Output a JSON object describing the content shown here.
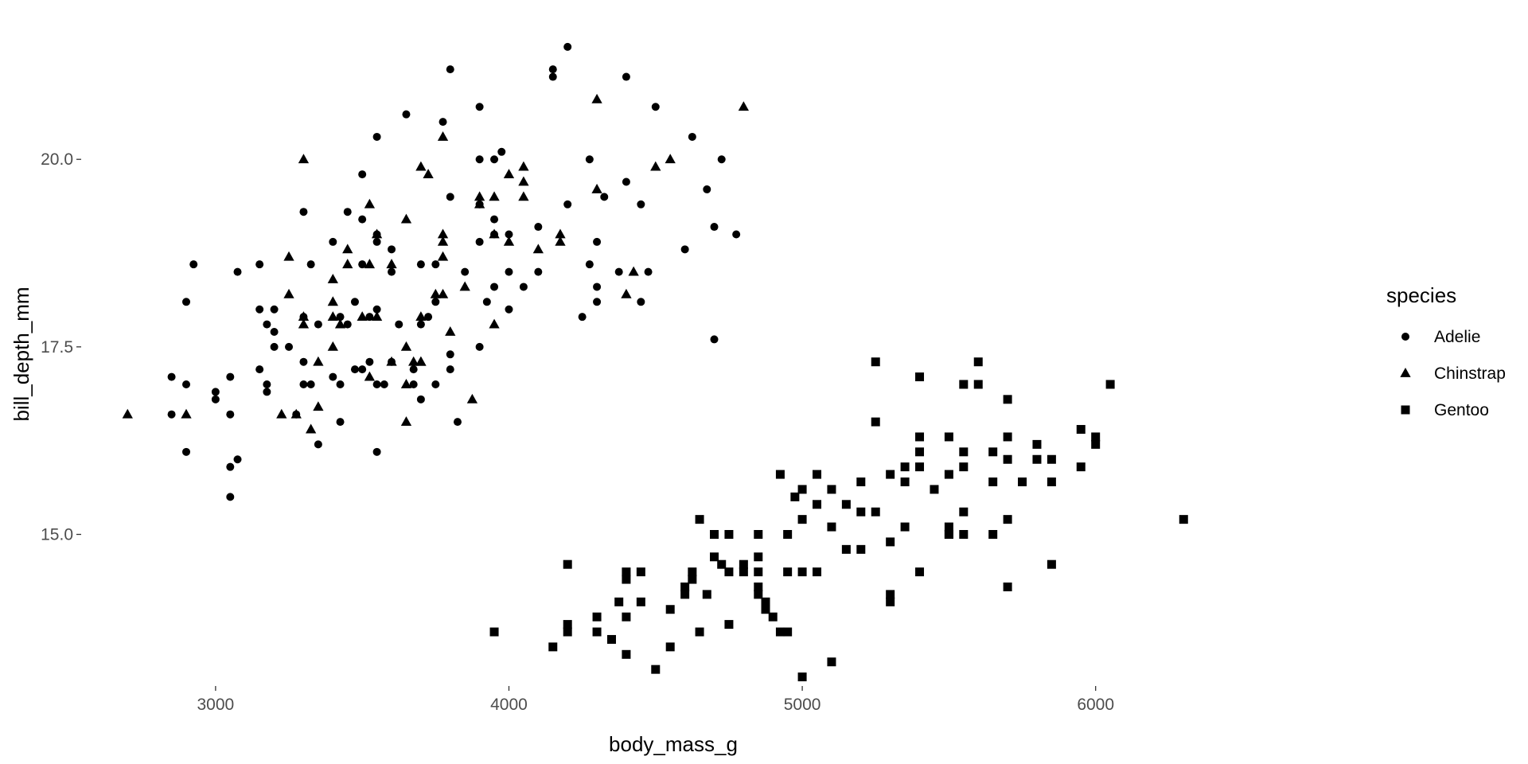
{
  "chart_data": {
    "type": "scatter",
    "xlabel": "body_mass_g",
    "ylabel": "bill_depth_mm",
    "xlim": [
      2550,
      6850
    ],
    "ylim": [
      13.0,
      21.7
    ],
    "x_ticks": [
      {
        "value": 3000,
        "label": "3000"
      },
      {
        "value": 4000,
        "label": "4000"
      },
      {
        "value": 5000,
        "label": "5000"
      },
      {
        "value": 6000,
        "label": "6000"
      }
    ],
    "y_ticks": [
      {
        "value": 15.0,
        "label": "15.0"
      },
      {
        "value": 17.5,
        "label": "17.5"
      },
      {
        "value": 20.0,
        "label": "20.0"
      }
    ],
    "grid": false,
    "legend": {
      "title": "species",
      "position": "right"
    },
    "series": [
      {
        "name": "Adelie",
        "shape": "circle",
        "points": [
          [
            4200,
            21.5
          ],
          [
            3800,
            21.2
          ],
          [
            4150,
            21.2
          ],
          [
            4150,
            21.1
          ],
          [
            4400,
            21.1
          ],
          [
            3650,
            20.6
          ],
          [
            3900,
            20.7
          ],
          [
            4500,
            20.7
          ],
          [
            3775,
            20.5
          ],
          [
            3550,
            20.3
          ],
          [
            4625,
            20.3
          ],
          [
            3975,
            20.1
          ],
          [
            3900,
            20.0
          ],
          [
            3950,
            20.0
          ],
          [
            4275,
            20.0
          ],
          [
            4725,
            20.0
          ],
          [
            3500,
            19.8
          ],
          [
            4400,
            19.7
          ],
          [
            4675,
            19.6
          ],
          [
            3800,
            19.5
          ],
          [
            4325,
            19.5
          ],
          [
            3900,
            19.4
          ],
          [
            4200,
            19.4
          ],
          [
            4450,
            19.4
          ],
          [
            3300,
            19.3
          ],
          [
            3450,
            19.3
          ],
          [
            3500,
            19.2
          ],
          [
            3950,
            19.2
          ],
          [
            4100,
            19.1
          ],
          [
            4700,
            19.1
          ],
          [
            3550,
            19.0
          ],
          [
            3950,
            19.0
          ],
          [
            4000,
            19.0
          ],
          [
            4775,
            19.0
          ],
          [
            3400,
            18.9
          ],
          [
            3550,
            18.9
          ],
          [
            3900,
            18.9
          ],
          [
            4300,
            18.9
          ],
          [
            3600,
            18.8
          ],
          [
            4600,
            18.8
          ],
          [
            3700,
            18.6
          ],
          [
            3750,
            18.6
          ],
          [
            4275,
            18.6
          ],
          [
            2925,
            18.6
          ],
          [
            3150,
            18.6
          ],
          [
            3325,
            18.6
          ],
          [
            3500,
            18.6
          ],
          [
            3600,
            18.5
          ],
          [
            3075,
            18.5
          ],
          [
            3850,
            18.5
          ],
          [
            4000,
            18.5
          ],
          [
            4100,
            18.5
          ],
          [
            4375,
            18.5
          ],
          [
            4475,
            18.5
          ],
          [
            3950,
            18.3
          ],
          [
            4300,
            18.3
          ],
          [
            4050,
            18.3
          ],
          [
            3925,
            18.1
          ],
          [
            4300,
            18.1
          ],
          [
            4450,
            18.1
          ],
          [
            3750,
            18.1
          ],
          [
            2900,
            18.1
          ],
          [
            3475,
            18.1
          ],
          [
            4000,
            18.0
          ],
          [
            3150,
            18.0
          ],
          [
            3200,
            18.0
          ],
          [
            3550,
            18.0
          ],
          [
            3300,
            17.9
          ],
          [
            3425,
            17.9
          ],
          [
            3525,
            17.9
          ],
          [
            3725,
            17.9
          ],
          [
            4250,
            17.9
          ],
          [
            3350,
            17.8
          ],
          [
            3450,
            17.8
          ],
          [
            3625,
            17.8
          ],
          [
            3700,
            17.8
          ],
          [
            3175,
            17.8
          ],
          [
            3200,
            17.7
          ],
          [
            4700,
            17.6
          ],
          [
            3800,
            17.4
          ],
          [
            3900,
            17.5
          ],
          [
            3200,
            17.5
          ],
          [
            3250,
            17.5
          ],
          [
            3525,
            17.3
          ],
          [
            3600,
            17.3
          ],
          [
            3300,
            17.3
          ],
          [
            3675,
            17.2
          ],
          [
            3475,
            17.2
          ],
          [
            3500,
            17.2
          ],
          [
            3150,
            17.2
          ],
          [
            3800,
            17.2
          ],
          [
            3400,
            17.1
          ],
          [
            3050,
            17.1
          ],
          [
            2850,
            17.1
          ],
          [
            3550,
            17.0
          ],
          [
            3300,
            17.0
          ],
          [
            2900,
            17.0
          ],
          [
            3325,
            17.0
          ],
          [
            3425,
            17.0
          ],
          [
            3750,
            17.0
          ],
          [
            3575,
            17.0
          ],
          [
            3175,
            17.0
          ],
          [
            3675,
            17.0
          ],
          [
            3000,
            16.9
          ],
          [
            3175,
            16.9
          ],
          [
            3700,
            16.8
          ],
          [
            3000,
            16.8
          ],
          [
            3050,
            16.6
          ],
          [
            2850,
            16.6
          ],
          [
            3275,
            16.6
          ],
          [
            3425,
            16.5
          ],
          [
            3825,
            16.5
          ],
          [
            3350,
            16.2
          ],
          [
            2900,
            16.1
          ],
          [
            3550,
            16.1
          ],
          [
            3075,
            16.0
          ],
          [
            3050,
            15.9
          ],
          [
            3050,
            15.5
          ]
        ]
      },
      {
        "name": "Chinstrap",
        "shape": "triangle",
        "points": [
          [
            4300,
            20.8
          ],
          [
            4800,
            20.7
          ],
          [
            3775,
            20.3
          ],
          [
            3300,
            20.0
          ],
          [
            4550,
            20.0
          ],
          [
            3700,
            19.9
          ],
          [
            4050,
            19.9
          ],
          [
            4500,
            19.9
          ],
          [
            3725,
            19.8
          ],
          [
            4000,
            19.8
          ],
          [
            4050,
            19.7
          ],
          [
            4300,
            19.6
          ],
          [
            3900,
            19.5
          ],
          [
            3950,
            19.5
          ],
          [
            3900,
            19.4
          ],
          [
            4050,
            19.5
          ],
          [
            3525,
            19.4
          ],
          [
            3650,
            19.2
          ],
          [
            3775,
            19.0
          ],
          [
            3950,
            19.0
          ],
          [
            4175,
            19.0
          ],
          [
            3550,
            19.0
          ],
          [
            4000,
            18.9
          ],
          [
            3775,
            18.9
          ],
          [
            4175,
            18.9
          ],
          [
            3450,
            18.8
          ],
          [
            4100,
            18.8
          ],
          [
            3250,
            18.7
          ],
          [
            3775,
            18.7
          ],
          [
            3525,
            18.6
          ],
          [
            3600,
            18.6
          ],
          [
            3450,
            18.6
          ],
          [
            3400,
            18.4
          ],
          [
            3850,
            18.3
          ],
          [
            4425,
            18.5
          ],
          [
            3250,
            18.2
          ],
          [
            3400,
            18.1
          ],
          [
            4400,
            18.2
          ],
          [
            3775,
            18.2
          ],
          [
            3750,
            18.2
          ],
          [
            3300,
            17.9
          ],
          [
            3400,
            17.9
          ],
          [
            3550,
            17.9
          ],
          [
            3700,
            17.9
          ],
          [
            3300,
            17.8
          ],
          [
            3500,
            17.9
          ],
          [
            3950,
            17.8
          ],
          [
            3425,
            17.8
          ],
          [
            3800,
            17.7
          ],
          [
            3650,
            17.5
          ],
          [
            3400,
            17.5
          ],
          [
            3700,
            17.3
          ],
          [
            3350,
            17.3
          ],
          [
            3700,
            17.3
          ],
          [
            3675,
            17.3
          ],
          [
            3600,
            17.3
          ],
          [
            3525,
            17.1
          ],
          [
            3650,
            17.0
          ],
          [
            3350,
            16.7
          ],
          [
            3225,
            16.6
          ],
          [
            2700,
            16.6
          ],
          [
            3275,
            16.6
          ],
          [
            2900,
            16.6
          ],
          [
            3650,
            16.5
          ],
          [
            3325,
            16.4
          ],
          [
            3875,
            16.8
          ]
        ]
      },
      {
        "name": "Gentoo",
        "shape": "square",
        "points": [
          [
            5250,
            17.3
          ],
          [
            5600,
            17.3
          ],
          [
            5400,
            17.1
          ],
          [
            5550,
            17.0
          ],
          [
            5600,
            17.0
          ],
          [
            6050,
            17.0
          ],
          [
            5700,
            16.8
          ],
          [
            5250,
            16.5
          ],
          [
            5950,
            16.4
          ],
          [
            5400,
            16.3
          ],
          [
            5500,
            16.3
          ],
          [
            5700,
            16.3
          ],
          [
            6000,
            16.3
          ],
          [
            6000,
            16.2
          ],
          [
            5800,
            16.2
          ],
          [
            5400,
            16.1
          ],
          [
            5550,
            16.1
          ],
          [
            5650,
            16.1
          ],
          [
            5700,
            16.0
          ],
          [
            5800,
            16.0
          ],
          [
            5850,
            16.0
          ],
          [
            5350,
            15.9
          ],
          [
            5400,
            15.9
          ],
          [
            5550,
            15.9
          ],
          [
            5950,
            15.9
          ],
          [
            4925,
            15.8
          ],
          [
            5050,
            15.8
          ],
          [
            5300,
            15.8
          ],
          [
            5500,
            15.8
          ],
          [
            5200,
            15.7
          ],
          [
            5350,
            15.7
          ],
          [
            5650,
            15.7
          ],
          [
            5750,
            15.7
          ],
          [
            5850,
            15.7
          ],
          [
            5000,
            15.6
          ],
          [
            5100,
            15.6
          ],
          [
            5450,
            15.6
          ],
          [
            4975,
            15.5
          ],
          [
            5050,
            15.4
          ],
          [
            5150,
            15.4
          ],
          [
            5550,
            15.3
          ],
          [
            5200,
            15.3
          ],
          [
            5250,
            15.3
          ],
          [
            6300,
            15.2
          ],
          [
            4650,
            15.2
          ],
          [
            5000,
            15.2
          ],
          [
            5700,
            15.2
          ],
          [
            5100,
            15.1
          ],
          [
            5350,
            15.1
          ],
          [
            5500,
            15.1
          ],
          [
            5500,
            15.0
          ],
          [
            4700,
            15.0
          ],
          [
            4750,
            15.0
          ],
          [
            4850,
            15.0
          ],
          [
            4950,
            15.0
          ],
          [
            5500,
            15.0
          ],
          [
            5550,
            15.0
          ],
          [
            5650,
            15.0
          ],
          [
            5300,
            14.9
          ],
          [
            5150,
            14.8
          ],
          [
            5200,
            14.8
          ],
          [
            4700,
            14.7
          ],
          [
            4850,
            14.7
          ],
          [
            4725,
            14.6
          ],
          [
            4200,
            14.6
          ],
          [
            4800,
            14.6
          ],
          [
            4625,
            14.5
          ],
          [
            4750,
            14.5
          ],
          [
            4800,
            14.5
          ],
          [
            4850,
            14.5
          ],
          [
            5000,
            14.5
          ],
          [
            5050,
            14.5
          ],
          [
            5400,
            14.5
          ],
          [
            4400,
            14.5
          ],
          [
            4450,
            14.5
          ],
          [
            5850,
            14.6
          ],
          [
            4625,
            14.4
          ],
          [
            4400,
            14.4
          ],
          [
            4600,
            14.3
          ],
          [
            4850,
            14.3
          ],
          [
            5700,
            14.3
          ],
          [
            4600,
            14.2
          ],
          [
            4850,
            14.2
          ],
          [
            4675,
            14.2
          ],
          [
            5300,
            14.2
          ],
          [
            4950,
            14.5
          ],
          [
            4375,
            14.1
          ],
          [
            4450,
            14.1
          ],
          [
            4875,
            14.1
          ],
          [
            5300,
            14.1
          ],
          [
            4550,
            14.0
          ],
          [
            4875,
            14.0
          ],
          [
            4300,
            13.9
          ],
          [
            4400,
            13.9
          ],
          [
            4900,
            13.9
          ],
          [
            4200,
            13.8
          ],
          [
            4200,
            13.7
          ],
          [
            4750,
            13.8
          ],
          [
            3950,
            13.7
          ],
          [
            4300,
            13.7
          ],
          [
            4925,
            13.7
          ],
          [
            4650,
            13.7
          ],
          [
            4950,
            13.7
          ],
          [
            4350,
            13.6
          ],
          [
            4150,
            13.5
          ],
          [
            4550,
            13.5
          ],
          [
            4400,
            13.4
          ],
          [
            5100,
            13.3
          ],
          [
            4500,
            13.2
          ],
          [
            5000,
            13.1
          ]
        ]
      }
    ]
  }
}
